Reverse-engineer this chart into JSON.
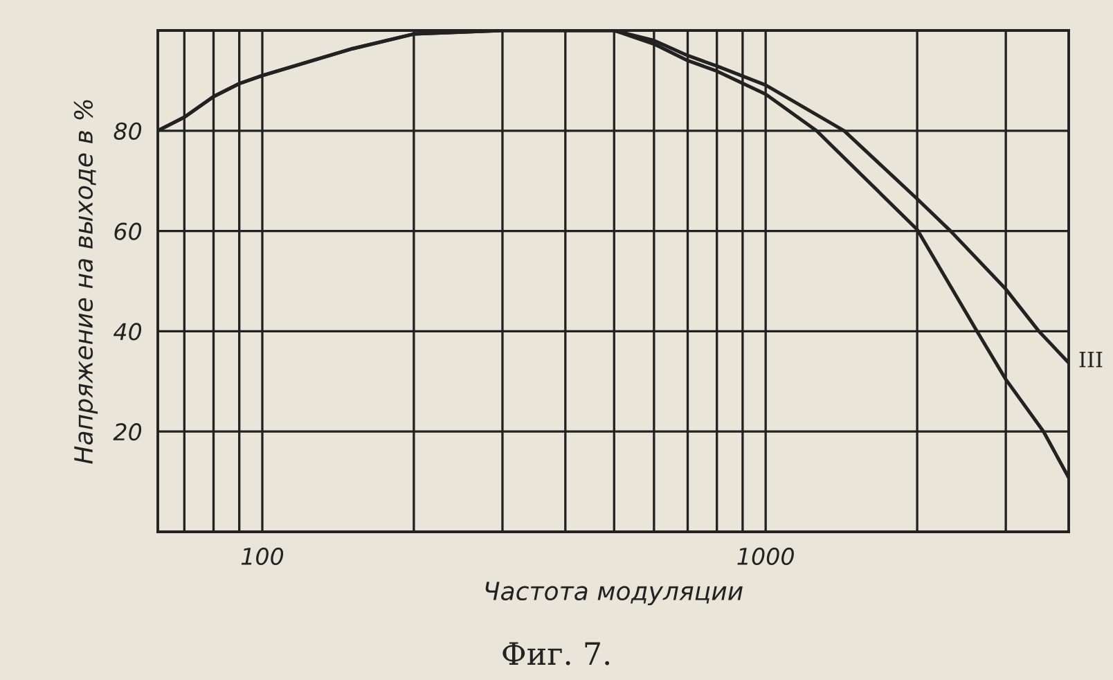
{
  "chart_data": {
    "type": "line",
    "xlabel": "Частота модуляции",
    "ylabel": "Напряжение на выходе в %",
    "log": "x",
    "grid": true,
    "marker": "none",
    "line_style": "solid",
    "legend": false,
    "xlim": [
      62,
      4000
    ],
    "ylim": [
      0,
      100
    ],
    "xticks": [
      {
        "value": 70,
        "label": null
      },
      {
        "value": 80,
        "label": null
      },
      {
        "value": 90,
        "label": null
      },
      100,
      {
        "value": 200,
        "label": null
      },
      {
        "value": 300,
        "label": null
      },
      {
        "value": 400,
        "label": null
      },
      {
        "value": 500,
        "label": null
      },
      {
        "value": 600,
        "label": null
      },
      {
        "value": 700,
        "label": null
      },
      {
        "value": 800,
        "label": null
      },
      {
        "value": 900,
        "label": null
      },
      1000,
      {
        "value": 2000,
        "label": null
      },
      {
        "value": 3000,
        "label": null
      }
    ],
    "yticks": [
      20,
      40,
      60,
      80
    ],
    "series": [
      {
        "color": "#222222",
        "x": [
          62,
          70,
          80,
          90,
          100,
          150,
          200,
          300,
          400,
          500,
          600,
          700,
          800,
          1000,
          1432,
          2000,
          2330,
          3000,
          3490,
          4000
        ],
        "values": [
          80,
          82.7,
          86.8,
          89.4,
          91,
          96.3,
          99.3,
          100,
          100,
          100,
          98,
          95,
          92.9,
          89.1,
          80,
          66.4,
          60,
          48.4,
          40,
          33.7
        ]
      },
      {
        "color": "#222222",
        "x": [
          62,
          70,
          80,
          90,
          100,
          150,
          200,
          300,
          400,
          500,
          600,
          700,
          800,
          1000,
          1262,
          2000,
          2630,
          3000,
          3565,
          4000
        ],
        "values": [
          80,
          82.7,
          86.8,
          89.4,
          91,
          96.3,
          99.3,
          100,
          100,
          100,
          97.3,
          94,
          91.9,
          87.3,
          80,
          60.3,
          40,
          30.4,
          20,
          10.8
        ]
      }
    ],
    "annotations": [
      {
        "text": "III",
        "x": 4000,
        "y": 34
      },
      "Фиг. 7."
    ]
  }
}
